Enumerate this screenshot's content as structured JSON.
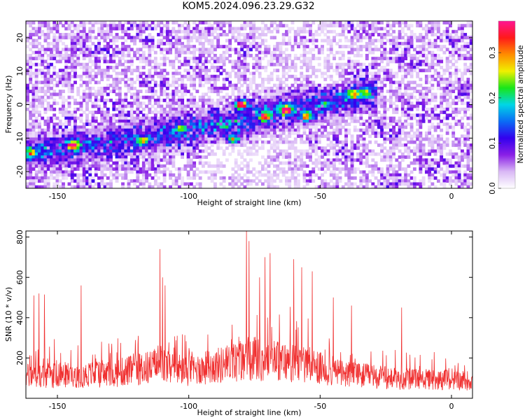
{
  "title": "KOM5.2024.096.23.29.G32",
  "chart_data": [
    {
      "type": "heatmap",
      "xlabel": "Height of straight line (km)",
      "ylabel": "Frequency (Hz)",
      "xlim": [
        -162,
        8
      ],
      "ylim": [
        -25,
        25
      ],
      "xticks": [
        -150,
        -100,
        -50,
        0
      ],
      "yticks": [
        -20,
        -10,
        0,
        10,
        20
      ],
      "colorbar": {
        "label": "Normalized spectral amplitude",
        "range": [
          0,
          0.37
        ],
        "ticks": [
          0.0,
          0.1,
          0.2,
          0.3
        ],
        "colormap": [
          "#ffffff",
          "#d9b8f5",
          "#8a1fe6",
          "#3300ee",
          "#0a6cf5",
          "#00d6e6",
          "#19e619",
          "#f0f000",
          "#ff8c00",
          "#ff1a1a",
          "#ff1493"
        ]
      },
      "ridge": [
        {
          "x": -160,
          "y": -14.5
        },
        {
          "x": -140,
          "y": -12.5
        },
        {
          "x": -120,
          "y": -10
        },
        {
          "x": -100,
          "y": -7
        },
        {
          "x": -80,
          "y": -5
        },
        {
          "x": -65,
          "y": -1.5
        },
        {
          "x": -50,
          "y": 0
        },
        {
          "x": -35,
          "y": 3
        }
      ],
      "peaks": [
        {
          "x": -160,
          "y": -14.5,
          "v": 0.2
        },
        {
          "x": -144,
          "y": -12.0,
          "v": 0.3
        },
        {
          "x": -118,
          "y": -11.0,
          "v": 0.18
        },
        {
          "x": -103,
          "y": -7.0,
          "v": 0.12
        },
        {
          "x": -83,
          "y": -10.5,
          "v": 0.22
        },
        {
          "x": -80,
          "y": 0.0,
          "v": 0.37
        },
        {
          "x": -71,
          "y": -3.5,
          "v": 0.26
        },
        {
          "x": -63,
          "y": -1.5,
          "v": 0.34
        },
        {
          "x": -55,
          "y": -3.5,
          "v": 0.24
        },
        {
          "x": -38,
          "y": 3.0,
          "v": 0.2
        },
        {
          "x": -33,
          "y": 3.5,
          "v": 0.18
        }
      ]
    },
    {
      "type": "line",
      "xlabel": "Height of straight line (km)",
      "ylabel": "SNR (10 * v/v)",
      "xlim": [
        -162,
        8
      ],
      "ylim": [
        0,
        830
      ],
      "xticks": [
        -150,
        -100,
        -50,
        0
      ],
      "yticks": [
        200,
        400,
        600,
        800
      ],
      "color": "#f03030",
      "baseline": [
        {
          "x": -160,
          "y": 140
        },
        {
          "x": -130,
          "y": 150
        },
        {
          "x": -112,
          "y": 200
        },
        {
          "x": -100,
          "y": 170
        },
        {
          "x": -80,
          "y": 230
        },
        {
          "x": -68,
          "y": 240
        },
        {
          "x": -55,
          "y": 200
        },
        {
          "x": -40,
          "y": 150
        },
        {
          "x": -20,
          "y": 120
        },
        {
          "x": 8,
          "y": 110
        }
      ],
      "spikes": [
        {
          "x": -159,
          "y": 510
        },
        {
          "x": -157,
          "y": 520
        },
        {
          "x": -155,
          "y": 515
        },
        {
          "x": -141,
          "y": 560
        },
        {
          "x": -111,
          "y": 740
        },
        {
          "x": -110,
          "y": 600
        },
        {
          "x": -109,
          "y": 560
        },
        {
          "x": -78,
          "y": 830
        },
        {
          "x": -77,
          "y": 780
        },
        {
          "x": -73,
          "y": 600
        },
        {
          "x": -71,
          "y": 700
        },
        {
          "x": -69,
          "y": 720
        },
        {
          "x": -60,
          "y": 690
        },
        {
          "x": -57,
          "y": 650
        },
        {
          "x": -53,
          "y": 630
        },
        {
          "x": -45,
          "y": 500
        },
        {
          "x": -38,
          "y": 460
        },
        {
          "x": -19,
          "y": 450
        }
      ]
    }
  ]
}
